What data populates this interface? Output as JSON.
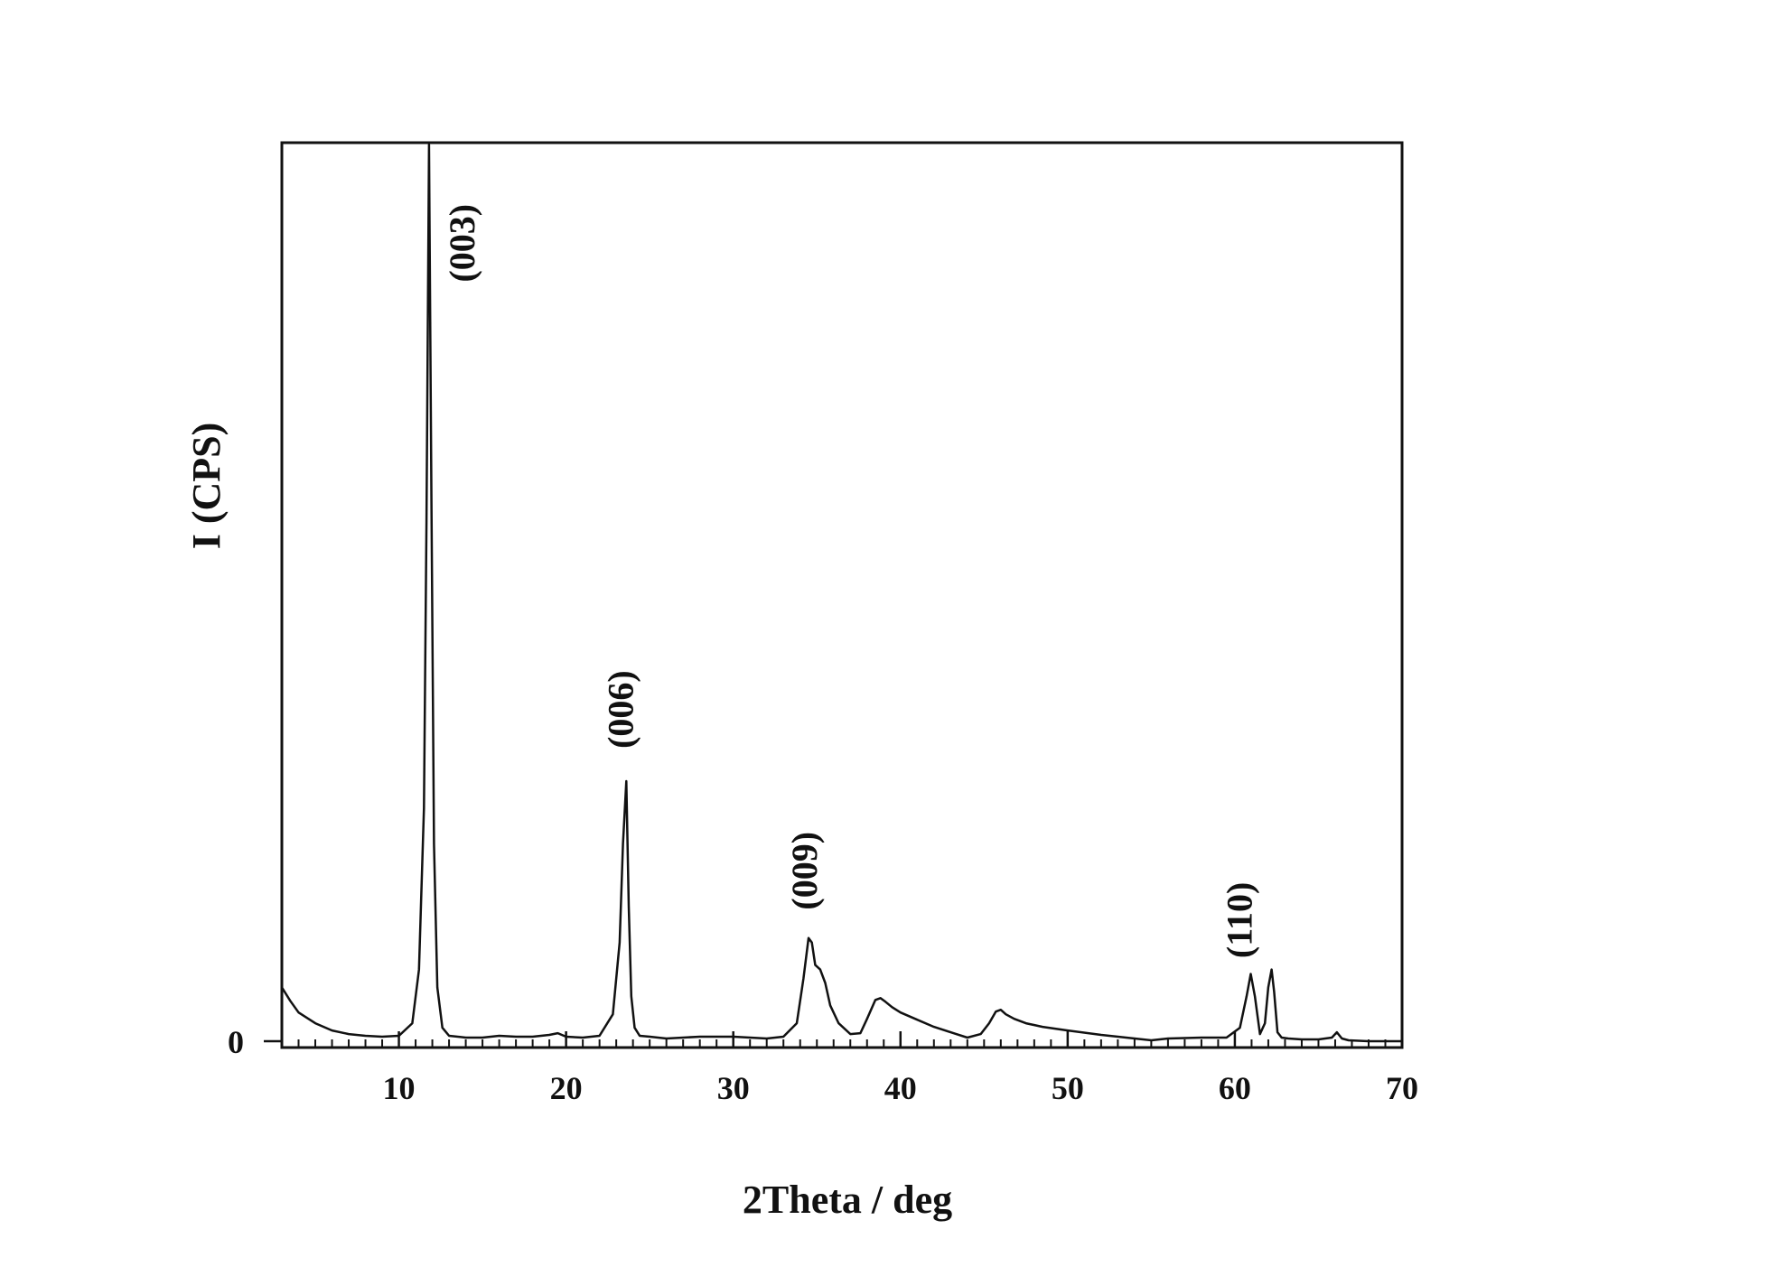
{
  "chart_data": {
    "type": "line",
    "title": "",
    "xlabel": "2Theta / deg",
    "ylabel": "I (CPS)",
    "xlim": [
      3,
      70
    ],
    "ylim": [
      0,
      100
    ],
    "x_ticks": [
      10,
      20,
      30,
      40,
      50,
      60,
      70
    ],
    "x_tick_labels": [
      "10",
      "20",
      "30",
      "40",
      "50",
      "60",
      "70"
    ],
    "y_ticks": [
      0
    ],
    "y_tick_labels": [
      "0"
    ],
    "grid": false,
    "legend": "none",
    "series": [
      {
        "x": [
          3.0,
          3.5,
          4.0,
          5.0,
          6.0,
          7.0,
          8.0,
          9.0,
          10.0,
          10.8,
          11.2,
          11.5,
          11.65,
          11.8,
          11.95,
          12.1,
          12.3,
          12.6,
          13.0,
          14.0,
          15.0,
          16.0,
          17.0,
          18.0,
          19.0,
          19.5,
          20.0,
          21.0,
          22.0,
          22.8,
          23.2,
          23.4,
          23.6,
          23.75,
          23.9,
          24.1,
          24.4,
          25.0,
          26.0,
          28.0,
          30.0,
          32.0,
          33.0,
          33.8,
          34.2,
          34.5,
          34.7,
          34.9,
          35.2,
          35.5,
          35.8,
          36.3,
          37.0,
          37.6,
          38.0,
          38.5,
          38.8,
          39.1,
          39.5,
          40.0,
          41.0,
          42.0,
          43.0,
          44.0,
          44.8,
          45.3,
          45.7,
          46.0,
          46.3,
          46.8,
          47.5,
          48.5,
          50.0,
          52.0,
          54.0,
          55.0,
          56.0,
          58.0,
          59.5,
          60.3,
          60.7,
          60.95,
          61.2,
          61.5,
          61.8,
          62.0,
          62.2,
          62.35,
          62.55,
          62.8,
          63.2,
          64.0,
          65.0,
          65.8,
          66.1,
          66.4,
          66.8,
          68.0,
          70.0
        ],
        "values": [
          6.0,
          4.5,
          3.2,
          2.0,
          1.2,
          0.8,
          0.6,
          0.5,
          0.6,
          2.0,
          8.0,
          26.0,
          58.0,
          100.0,
          60.0,
          22.0,
          6.0,
          1.5,
          0.6,
          0.4,
          0.4,
          0.6,
          0.5,
          0.5,
          0.7,
          0.9,
          0.5,
          0.4,
          0.6,
          3.0,
          11.0,
          22.0,
          29.0,
          15.0,
          5.0,
          1.5,
          0.6,
          0.5,
          0.3,
          0.5,
          0.5,
          0.3,
          0.5,
          2.0,
          7.0,
          11.5,
          11.0,
          8.5,
          8.0,
          6.5,
          4.0,
          2.0,
          0.8,
          0.9,
          2.5,
          4.6,
          4.8,
          4.4,
          3.8,
          3.2,
          2.4,
          1.6,
          1.0,
          0.4,
          0.8,
          2.0,
          3.3,
          3.5,
          3.0,
          2.5,
          2.0,
          1.6,
          1.2,
          0.7,
          0.3,
          0.1,
          0.3,
          0.4,
          0.4,
          1.5,
          5.0,
          7.5,
          5.0,
          0.8,
          2.0,
          6.0,
          8.0,
          5.5,
          1.0,
          0.4,
          0.3,
          0.2,
          0.2,
          0.4,
          1.0,
          0.3,
          0.1,
          0.0,
          0.0
        ]
      }
    ],
    "annotations": [
      {
        "text": "(003)",
        "x": 14.5,
        "y": 89.0
      },
      {
        "text": "(006)",
        "x": 24.0,
        "y": 37.0
      },
      {
        "text": "(009)",
        "x": 35.0,
        "y": 19.0
      },
      {
        "text": "(110)",
        "x": 61.0,
        "y": 13.5
      }
    ]
  }
}
